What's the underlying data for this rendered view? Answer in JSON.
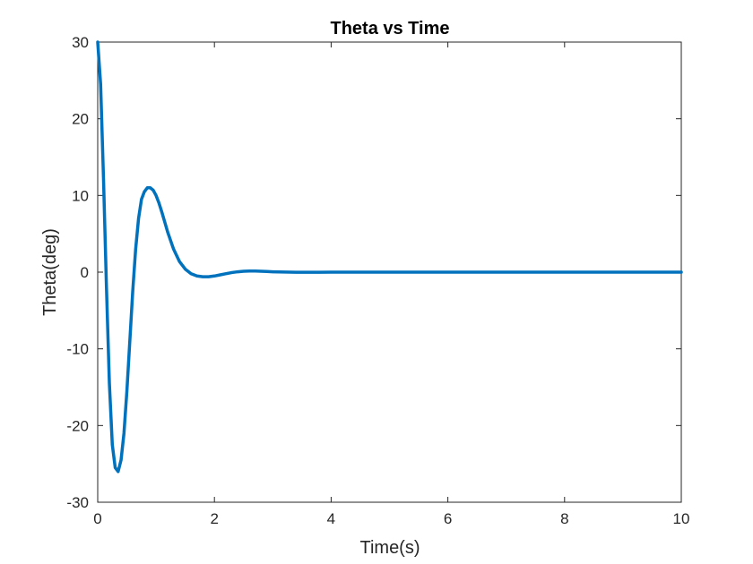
{
  "chart_data": {
    "type": "line",
    "title": "Theta vs Time",
    "xlabel": "Time(s)",
    "ylabel": "Theta(deg)",
    "xlim": [
      0,
      10
    ],
    "ylim": [
      -30,
      30
    ],
    "xticks": [
      0,
      2,
      4,
      6,
      8,
      10
    ],
    "yticks": [
      -30,
      -20,
      -10,
      0,
      10,
      20,
      30
    ],
    "grid": false,
    "series": [
      {
        "color": "#0072BD",
        "x": [
          0,
          0.05,
          0.1,
          0.15,
          0.2,
          0.25,
          0.3,
          0.35,
          0.4,
          0.45,
          0.5,
          0.55,
          0.6,
          0.65,
          0.7,
          0.75,
          0.8,
          0.85,
          0.9,
          0.95,
          1.0,
          1.05,
          1.1,
          1.15,
          1.2,
          1.3,
          1.4,
          1.5,
          1.6,
          1.7,
          1.8,
          1.9,
          2.0,
          2.1,
          2.2,
          2.3,
          2.4,
          2.5,
          2.6,
          2.7,
          2.8,
          2.9,
          3.0,
          3.2,
          3.4,
          3.6,
          3.8,
          4.0,
          5.0,
          6.0,
          7.0,
          8.0,
          9.0,
          10.0
        ],
        "y": [
          30,
          24.5,
          12.0,
          -2.0,
          -14.5,
          -22.5,
          -25.5,
          -26.0,
          -24.5,
          -21.0,
          -15.5,
          -9.0,
          -2.5,
          3.0,
          7.0,
          9.5,
          10.5,
          11.0,
          11.0,
          10.7,
          10.0,
          9.0,
          7.8,
          6.5,
          5.2,
          3.0,
          1.4,
          0.4,
          -0.2,
          -0.5,
          -0.6,
          -0.6,
          -0.5,
          -0.35,
          -0.2,
          -0.05,
          0.05,
          0.12,
          0.15,
          0.15,
          0.12,
          0.08,
          0.05,
          0.01,
          -0.02,
          -0.02,
          -0.01,
          0,
          0,
          0,
          0,
          0,
          0,
          0
        ]
      }
    ]
  }
}
